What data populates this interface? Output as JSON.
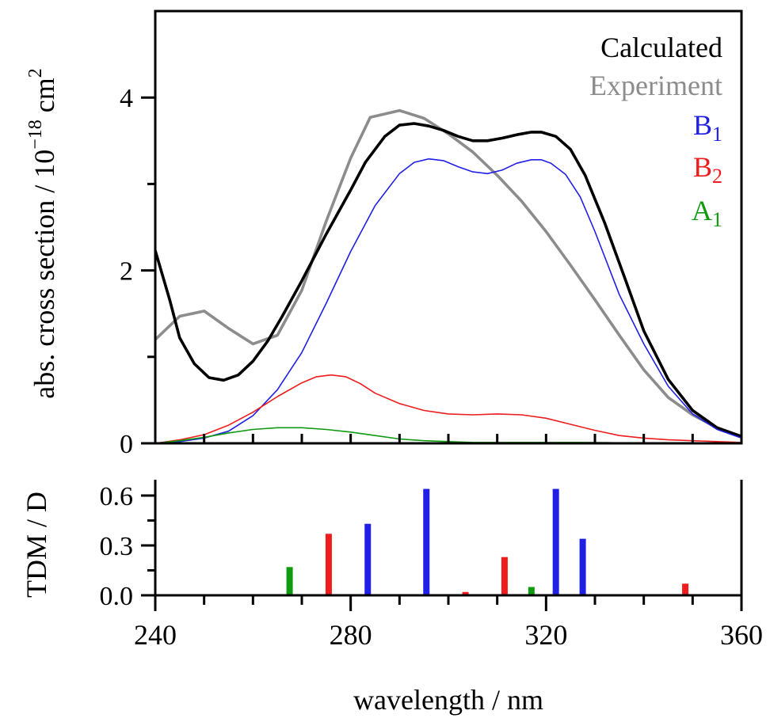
{
  "chart_data": [
    {
      "type": "line",
      "ylabel": "abs. cross section / 10",
      "ylabel_exp": "−18",
      "ylabel_unit": "cm",
      "ylabel_unit_exp": "2",
      "xlim": [
        240,
        360
      ],
      "ylim": [
        0,
        5
      ],
      "yticks": [
        0,
        2,
        4
      ],
      "ytick_labels": [
        "0",
        "2",
        "4"
      ],
      "series": [
        {
          "name": "Calculated",
          "color": "#000000",
          "x": [
            240,
            243,
            245,
            248,
            251,
            254,
            257,
            260,
            263,
            266,
            270,
            275,
            280,
            283,
            287,
            290,
            293,
            296,
            299,
            302,
            305,
            308,
            311,
            314,
            317,
            319,
            322,
            325,
            328,
            332,
            336,
            340,
            345,
            350,
            355,
            360
          ],
          "y": [
            2.23,
            1.65,
            1.22,
            0.92,
            0.76,
            0.73,
            0.79,
            0.95,
            1.18,
            1.47,
            1.88,
            2.42,
            2.93,
            3.25,
            3.55,
            3.68,
            3.7,
            3.67,
            3.62,
            3.55,
            3.5,
            3.5,
            3.53,
            3.57,
            3.6,
            3.6,
            3.55,
            3.4,
            3.1,
            2.55,
            1.93,
            1.3,
            0.74,
            0.38,
            0.18,
            0.08
          ]
        },
        {
          "name": "Experiment",
          "color": "#8c8c8c",
          "x": [
            240,
            245,
            250,
            255,
            260,
            265,
            270,
            275,
            280,
            284,
            290,
            295,
            300,
            305,
            310,
            315,
            320,
            325,
            330,
            335,
            340,
            345,
            350,
            355,
            360
          ],
          "y": [
            1.2,
            1.47,
            1.53,
            1.33,
            1.15,
            1.25,
            1.77,
            2.57,
            3.3,
            3.77,
            3.85,
            3.76,
            3.58,
            3.37,
            3.1,
            2.8,
            2.45,
            2.06,
            1.66,
            1.25,
            0.85,
            0.53,
            0.33,
            0.18,
            0.08
          ]
        },
        {
          "name": "B",
          "name_sub": "1",
          "color": "#1f1fe6",
          "x": [
            240,
            245,
            250,
            255,
            260,
            265,
            270,
            275,
            280,
            285,
            290,
            293,
            296,
            299,
            302,
            305,
            308,
            311,
            314,
            317,
            319,
            321,
            324,
            327,
            330,
            335,
            340,
            345,
            350,
            355,
            360
          ],
          "y": [
            0,
            0.02,
            0.06,
            0.14,
            0.32,
            0.62,
            1.05,
            1.62,
            2.22,
            2.75,
            3.12,
            3.25,
            3.29,
            3.27,
            3.2,
            3.14,
            3.12,
            3.16,
            3.24,
            3.28,
            3.28,
            3.24,
            3.11,
            2.85,
            2.45,
            1.72,
            1.15,
            0.66,
            0.34,
            0.16,
            0.06
          ]
        },
        {
          "name": "B",
          "name_sub": "2",
          "color": "#ee1c1c",
          "x": [
            240,
            245,
            250,
            255,
            260,
            265,
            270,
            273,
            276,
            279,
            282,
            285,
            290,
            295,
            300,
            305,
            310,
            315,
            320,
            325,
            330,
            335,
            340,
            345,
            350,
            355,
            360
          ],
          "y": [
            0,
            0.04,
            0.1,
            0.21,
            0.36,
            0.54,
            0.7,
            0.77,
            0.79,
            0.77,
            0.69,
            0.58,
            0.46,
            0.38,
            0.34,
            0.33,
            0.34,
            0.33,
            0.29,
            0.22,
            0.15,
            0.09,
            0.06,
            0.04,
            0.03,
            0.02,
            0.01
          ]
        },
        {
          "name": "A",
          "name_sub": "1",
          "color": "#0f9a0f",
          "x": [
            240,
            245,
            250,
            255,
            260,
            265,
            270,
            275,
            280,
            285,
            290,
            295,
            300,
            305,
            310,
            320,
            330,
            340,
            350,
            360
          ],
          "y": [
            0,
            0.03,
            0.07,
            0.12,
            0.16,
            0.18,
            0.18,
            0.16,
            0.13,
            0.09,
            0.05,
            0.03,
            0.02,
            0.01,
            0.01,
            0.01,
            0.01,
            0,
            0,
            0
          ]
        }
      ]
    },
    {
      "type": "bar",
      "ylabel": "TDM / D",
      "xlabel": "wavelength / nm",
      "xlim": [
        240,
        360
      ],
      "ylim": [
        0,
        0.72
      ],
      "yticks": [
        0,
        0.3,
        0.6
      ],
      "ytick_labels": [
        "0.0",
        "0.3",
        "0.6"
      ],
      "xticks": [
        240,
        280,
        320,
        360
      ],
      "xtick_labels": [
        "240",
        "280",
        "320",
        "360"
      ],
      "bars": [
        {
          "x": 267.5,
          "value": 0.17,
          "color": "#0f9a0f"
        },
        {
          "x": 275.5,
          "value": 0.37,
          "color": "#ee1c1c"
        },
        {
          "x": 283.5,
          "value": 0.43,
          "color": "#1f1fe6"
        },
        {
          "x": 295.5,
          "value": 0.64,
          "color": "#1f1fe6"
        },
        {
          "x": 303.5,
          "value": 0.02,
          "color": "#ee1c1c"
        },
        {
          "x": 311.5,
          "value": 0.23,
          "color": "#ee1c1c"
        },
        {
          "x": 317.0,
          "value": 0.05,
          "color": "#0f9a0f"
        },
        {
          "x": 322.0,
          "value": 0.64,
          "color": "#1f1fe6"
        },
        {
          "x": 327.5,
          "value": 0.34,
          "color": "#1f1fe6"
        },
        {
          "x": 348.5,
          "value": 0.07,
          "color": "#ee1c1c"
        }
      ]
    }
  ]
}
